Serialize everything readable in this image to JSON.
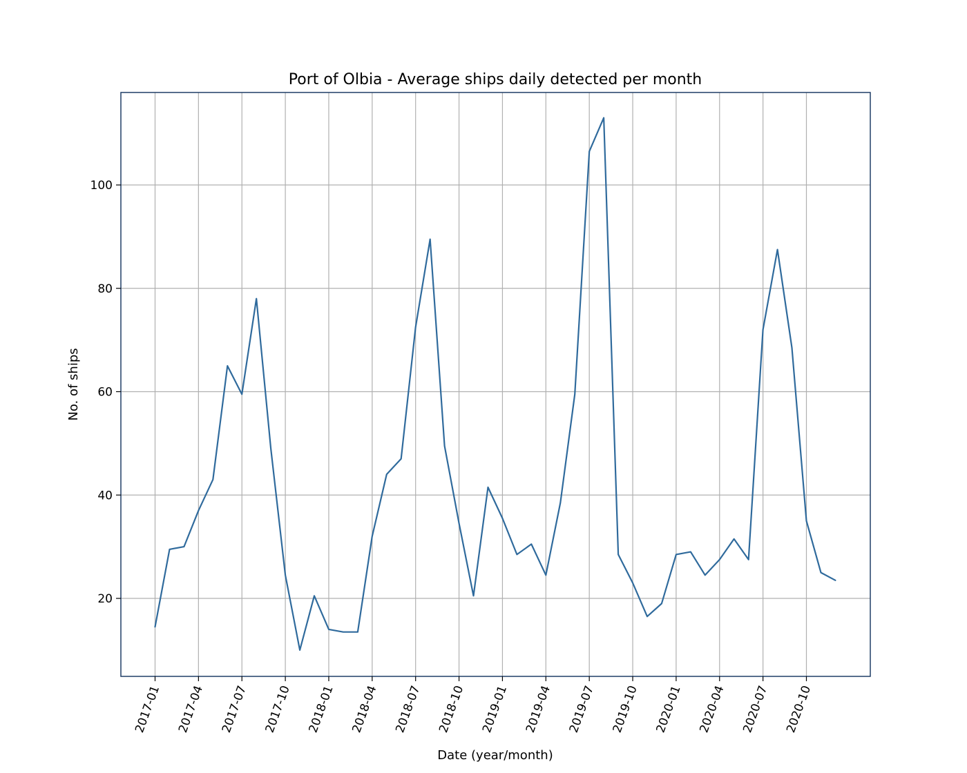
{
  "chart_data": {
    "type": "line",
    "title": "Port of Olbia - Average ships daily detected per month",
    "xlabel": "Date (year/month)",
    "ylabel": "No. of ships",
    "x_tick_labels": [
      "2017-01",
      "2017-04",
      "2017-07",
      "2017-10",
      "2018-01",
      "2018-04",
      "2018-07",
      "2018-10",
      "2019-01",
      "2019-04",
      "2019-07",
      "2019-10",
      "2020-01",
      "2020-04",
      "2020-07",
      "2020-10"
    ],
    "y_ticks": [
      20,
      40,
      60,
      80,
      100
    ],
    "ylim": [
      5,
      118
    ],
    "xlim": [
      "2016-10",
      "2021-02"
    ],
    "grid": true,
    "series": [
      {
        "color": "#2f6a9c",
        "x": [
          "2017-01",
          "2017-02",
          "2017-03",
          "2017-04",
          "2017-05",
          "2017-06",
          "2017-07",
          "2017-08",
          "2017-09",
          "2017-10",
          "2017-11",
          "2017-12",
          "2018-01",
          "2018-02",
          "2018-03",
          "2018-04",
          "2018-05",
          "2018-06",
          "2018-07",
          "2018-08",
          "2018-09",
          "2018-10",
          "2018-11",
          "2018-12",
          "2019-01",
          "2019-02",
          "2019-03",
          "2019-04",
          "2019-05",
          "2019-06",
          "2019-07",
          "2019-08",
          "2019-09",
          "2019-10",
          "2019-11",
          "2019-12",
          "2020-01",
          "2020-02",
          "2020-03",
          "2020-04",
          "2020-05",
          "2020-06",
          "2020-07",
          "2020-08",
          "2020-09",
          "2020-10",
          "2020-11",
          "2020-12"
        ],
        "values": [
          14.5,
          29.5,
          30,
          37,
          43,
          65,
          59.5,
          78,
          49,
          24.5,
          10,
          20.5,
          14,
          13.5,
          13.5,
          32,
          44,
          47,
          72.5,
          89.5,
          49.5,
          34.5,
          20.5,
          41.5,
          35.5,
          28.5,
          30.5,
          24.5,
          38.5,
          59.5,
          106.5,
          113,
          28.5,
          23,
          16.5,
          19,
          28.5,
          29,
          24.5,
          27.5,
          31.5,
          27.5,
          72,
          87.5,
          68.5,
          35,
          25,
          23.5
        ]
      }
    ]
  }
}
